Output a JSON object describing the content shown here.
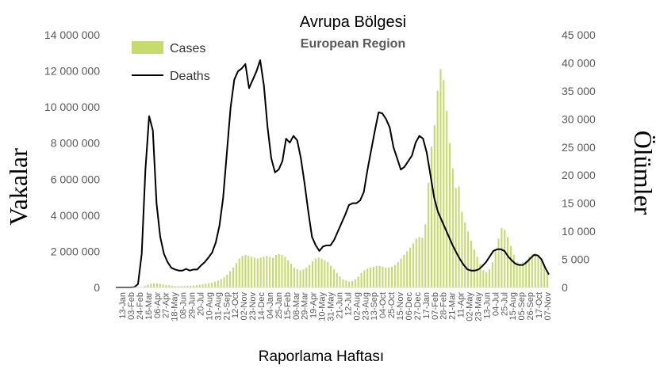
{
  "chart_data": {
    "type": "bar",
    "title": "Avrupa Bölgesi",
    "subtitle": "European Region",
    "xlabel": "Raporlama Haftası",
    "ylabel_left": "Vakalar",
    "ylabel_right": "Ölümler",
    "ylim_left": [
      0,
      14000000
    ],
    "ylim_right": [
      0,
      45000
    ],
    "yticks_left": [
      "0",
      "2 000 000",
      "4 000 000",
      "6 000 000",
      "8 000 000",
      "10 000 000",
      "12 000 000",
      "14 000 000"
    ],
    "yticks_right": [
      "0",
      "5 000",
      "10 000",
      "15 000",
      "20 000",
      "25 000",
      "30 000",
      "35 000",
      "40 000",
      "45 000"
    ],
    "x_tick_labels": [
      "13-Jan",
      "03-Feb",
      "24-Feb",
      "16-Mar",
      "06-Apr",
      "27-Apr",
      "18-May",
      "08-Jun",
      "29-Jun",
      "20-Jul",
      "10-Aug",
      "31-Aug",
      "21-Sep",
      "12-Oct",
      "02-Nov",
      "23-Nov",
      "14-Dec",
      "04-Jan",
      "25-Jan",
      "15-Feb",
      "08-Mar",
      "29-Mar",
      "19-Apr",
      "10-May",
      "31-May",
      "21-Jun",
      "12-Jul",
      "02-Aug",
      "23-Aug",
      "13-Sep",
      "04-Oct",
      "25-Oct",
      "15-Nov",
      "06-Dec",
      "27-Dec",
      "17-Jan",
      "07-Feb",
      "28-Feb",
      "21-Mar",
      "11-Apr",
      "02-May",
      "23-May",
      "13-Jun",
      "04-Jul",
      "25-Jul",
      "15-Aug",
      "05-Sep",
      "26-Sep",
      "17-Oct",
      "07-Nov"
    ],
    "legend_position": "top-left",
    "grid": false,
    "series": [
      {
        "name": "Cases",
        "axis": "left",
        "type": "bar",
        "color": "#c5dc6c",
        "values": [
          0,
          0,
          0,
          0,
          0,
          0,
          0,
          0,
          20000,
          90000,
          160000,
          210000,
          240000,
          230000,
          200000,
          170000,
          140000,
          120000,
          100000,
          80000,
          70000,
          70000,
          80000,
          90000,
          100000,
          110000,
          130000,
          150000,
          170000,
          200000,
          230000,
          270000,
          320000,
          380000,
          460000,
          560000,
          700000,
          900000,
          1100000,
          1350000,
          1600000,
          1750000,
          1800000,
          1750000,
          1700000,
          1650000,
          1600000,
          1650000,
          1700000,
          1750000,
          1700000,
          1650000,
          1800000,
          1850000,
          1800000,
          1700000,
          1500000,
          1300000,
          1100000,
          1000000,
          950000,
          1000000,
          1100000,
          1250000,
          1450000,
          1600000,
          1650000,
          1600000,
          1500000,
          1400000,
          1200000,
          1000000,
          800000,
          600000,
          450000,
          380000,
          330000,
          350000,
          450000,
          600000,
          800000,
          950000,
          1050000,
          1100000,
          1150000,
          1200000,
          1200000,
          1150000,
          1100000,
          1100000,
          1150000,
          1250000,
          1400000,
          1600000,
          1800000,
          2000000,
          2200000,
          2450000,
          2700000,
          2800000,
          2750000,
          3500000,
          5800000,
          7800000,
          9000000,
          10900000,
          12100000,
          11500000,
          9800000,
          8000000,
          6600000,
          5500000,
          5600000,
          4200000,
          3600000,
          3100000,
          2600000,
          2100000,
          1700000,
          1300000,
          950000,
          850000,
          1000000,
          1400000,
          2000000,
          2700000,
          3300000,
          3200000,
          2800000,
          2300000,
          1800000,
          1400000,
          1300000,
          1400000,
          1500000,
          1700000,
          1850000,
          1900000,
          1800000,
          1600000,
          1200000,
          800000
        ]
      },
      {
        "name": "Deaths",
        "axis": "right",
        "type": "line",
        "color": "#000000",
        "values": [
          0,
          0,
          0,
          0,
          0,
          50,
          600,
          6000,
          21000,
          30500,
          28000,
          15000,
          9000,
          6000,
          4500,
          3500,
          3200,
          3000,
          3000,
          3300,
          3000,
          3200,
          3200,
          3900,
          4500,
          5300,
          6200,
          8000,
          11000,
          16000,
          24000,
          32000,
          37000,
          38500,
          39000,
          39800,
          35500,
          37000,
          38500,
          40500,
          36000,
          28500,
          23000,
          20500,
          21000,
          22500,
          26500,
          25800,
          27000,
          26200,
          23000,
          18500,
          13500,
          9000,
          7500,
          6500,
          7300,
          7500,
          7500,
          8500,
          10000,
          11500,
          13000,
          14700,
          15000,
          15000,
          15500,
          17000,
          21000,
          24500,
          28000,
          31200,
          31000,
          30000,
          28500,
          25000,
          23000,
          21000,
          21500,
          22500,
          23500,
          25800,
          27000,
          26500,
          24000,
          20000,
          16000,
          13500,
          12000,
          10500,
          9000,
          7500,
          6200,
          5000,
          4000,
          3200,
          3000,
          3000,
          3200,
          3800,
          4500,
          5500,
          6500,
          6800,
          6800,
          6500,
          5500,
          4800,
          4200,
          4000,
          4000,
          4500,
          5200,
          5800,
          5700,
          5000,
          3500,
          2300
        ]
      }
    ]
  }
}
